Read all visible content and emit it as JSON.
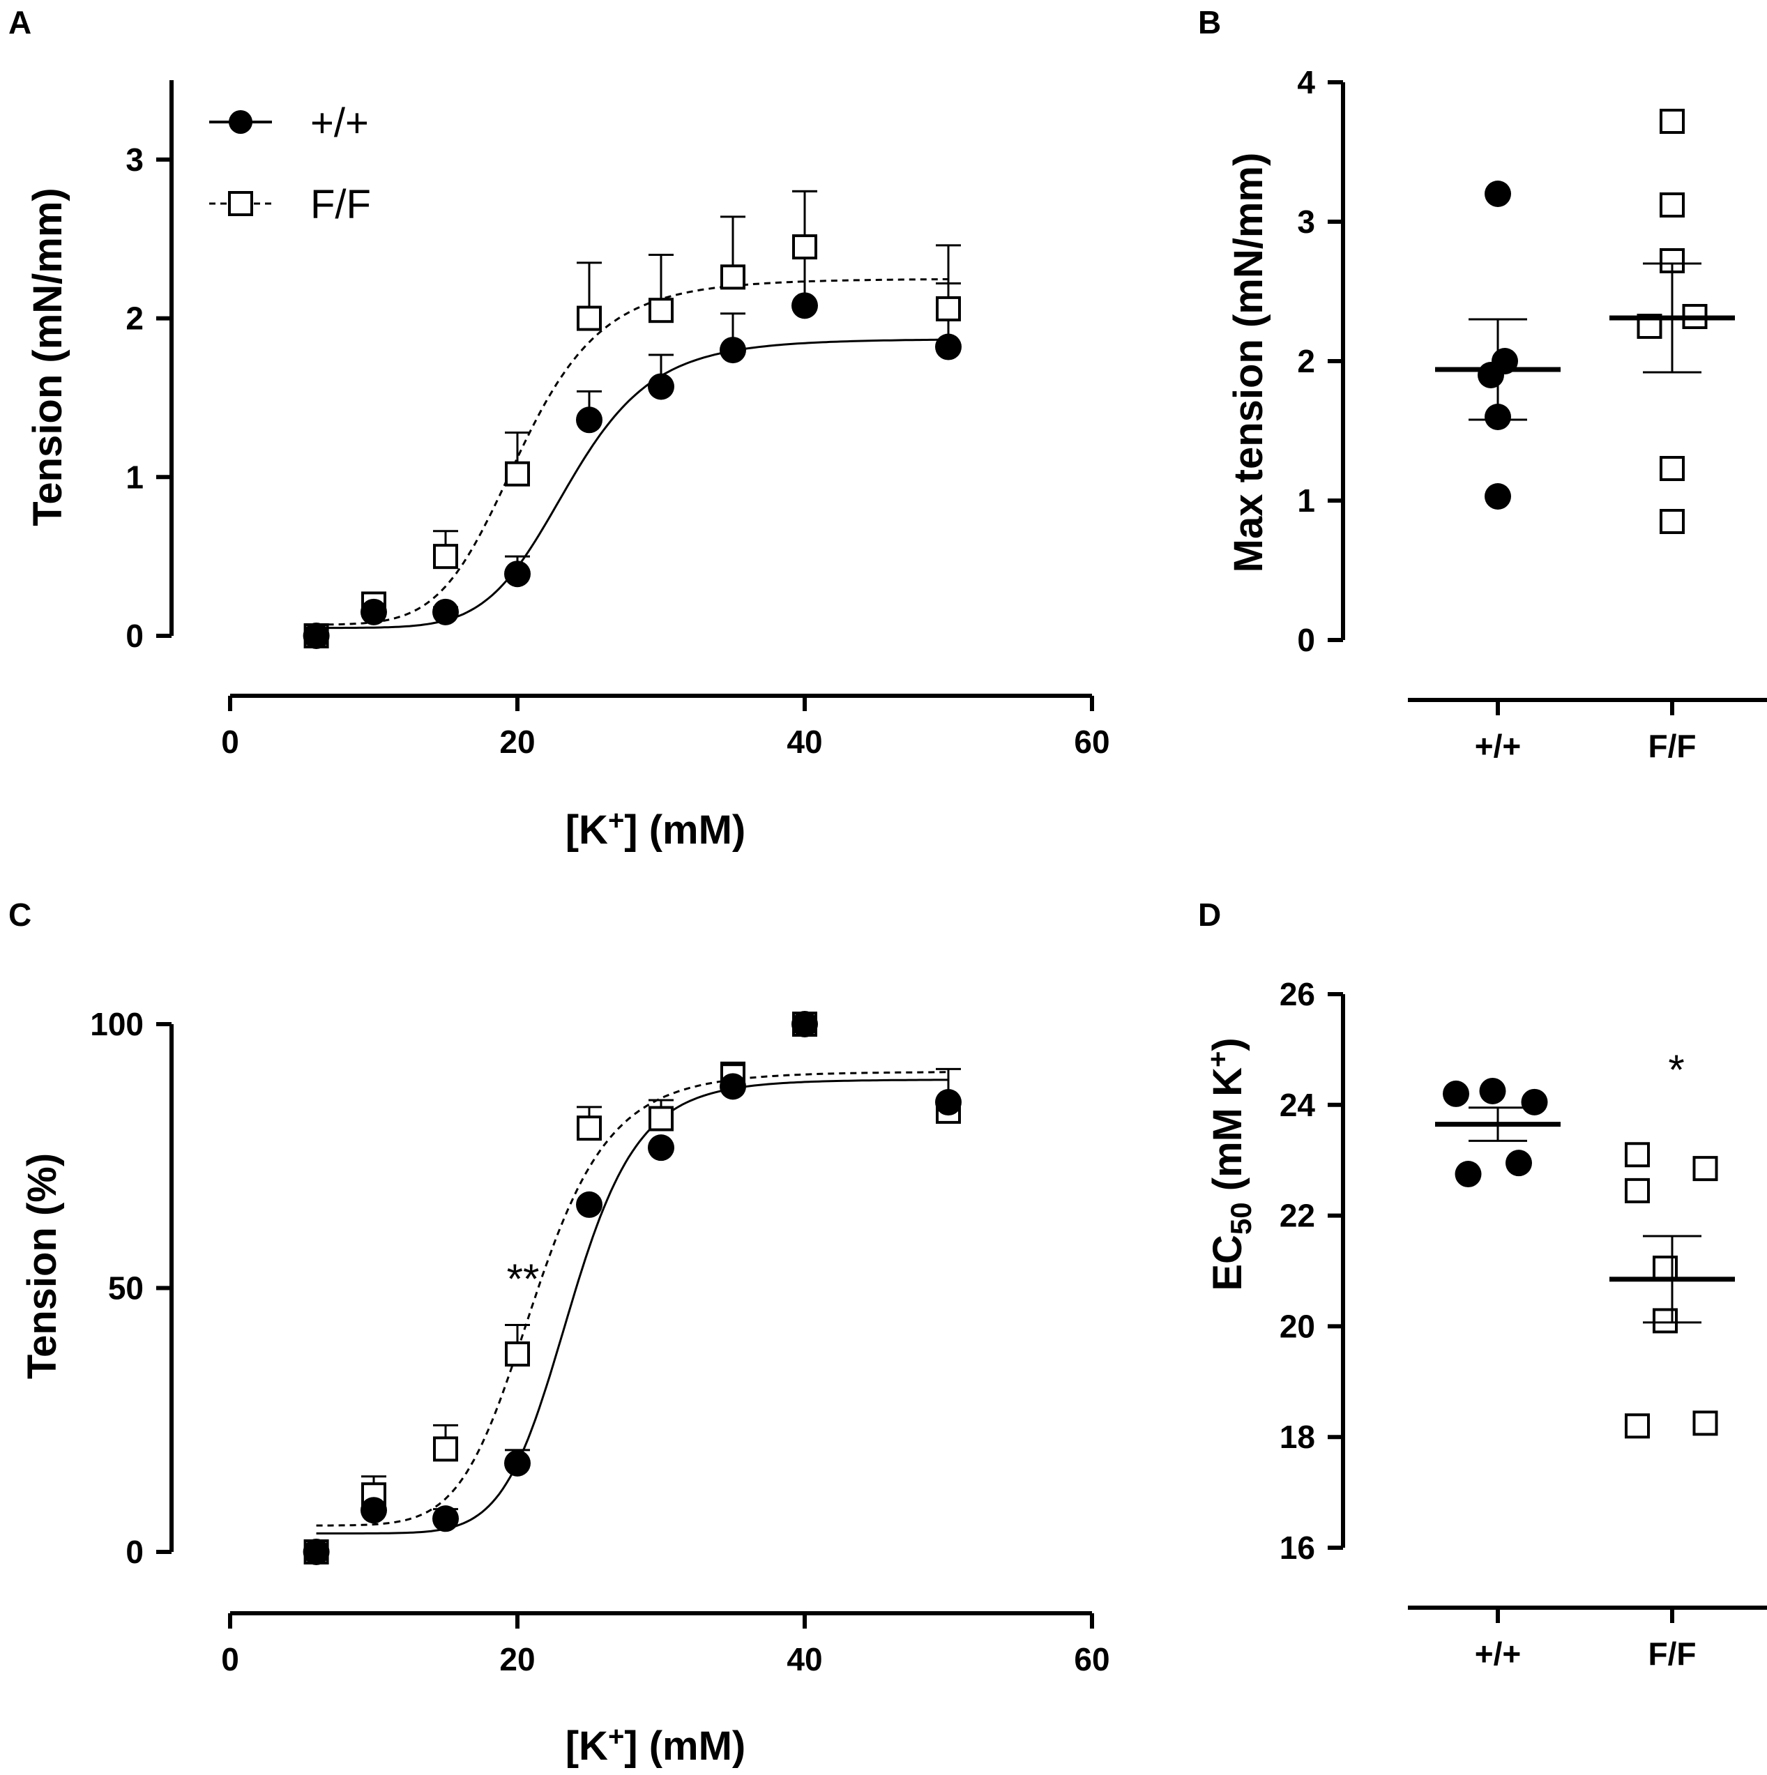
{
  "figure": {
    "panel_labels": [
      "A",
      "B",
      "C",
      "D"
    ]
  },
  "chart_data": [
    {
      "panel": "A",
      "type": "line",
      "xlabel": {
        "pre": "[K",
        "sup": "+",
        "post": "] (mM)"
      },
      "ylabel": "Tension (mN/mm)",
      "xlim": [
        0,
        60
      ],
      "ylim": [
        0,
        3.5
      ],
      "xticks": [
        0,
        20,
        40,
        60
      ],
      "yticks": [
        0,
        1,
        2,
        3
      ],
      "legend": {
        "position": "top-left",
        "entries": [
          "+/+",
          "F/F"
        ]
      },
      "series": [
        {
          "name": "+/+",
          "marker": "filled-circle",
          "line": "solid",
          "x": [
            6,
            10,
            15,
            20,
            25,
            30,
            35,
            40,
            50
          ],
          "y": [
            0.0,
            0.15,
            0.15,
            0.39,
            1.36,
            1.57,
            1.8,
            2.08,
            1.82
          ],
          "err": [
            0.0,
            0.03,
            0.03,
            0.11,
            0.18,
            0.2,
            0.23,
            0.72,
            0.4
          ],
          "fit": {
            "bottom": 0.05,
            "top": 1.87,
            "ec50": 23.6,
            "hill": 8
          }
        },
        {
          "name": "F/F",
          "marker": "open-square",
          "line": "dashed",
          "x": [
            6,
            10,
            15,
            20,
            25,
            30,
            35,
            40,
            50
          ],
          "y": [
            0.0,
            0.2,
            0.5,
            1.02,
            2.0,
            2.05,
            2.26,
            2.45,
            2.06
          ],
          "err": [
            0.0,
            0.04,
            0.16,
            0.26,
            0.35,
            0.35,
            0.38,
            0.35,
            0.4
          ],
          "fit": {
            "bottom": 0.07,
            "top": 2.25,
            "ec50": 20.2,
            "hill": 7
          }
        }
      ]
    },
    {
      "panel": "B",
      "type": "scatter",
      "ylabel": "Max tension (mN/mm)",
      "categories": [
        "+/+",
        "F/F"
      ],
      "ylim": [
        0,
        4
      ],
      "yticks": [
        0,
        1,
        2,
        3,
        4
      ],
      "series": [
        {
          "name": "+/+",
          "marker": "filled-circle",
          "points": [
            [
              0,
              3.2
            ],
            [
              -0.04,
              1.9
            ],
            [
              0.04,
              2.0
            ],
            [
              0.0,
              1.6
            ],
            [
              0.0,
              1.03
            ]
          ],
          "mean": 1.94,
          "sem": 0.36
        },
        {
          "name": "F/F",
          "marker": "open-square",
          "points": [
            [
              0.0,
              3.72
            ],
            [
              0.0,
              3.12
            ],
            [
              0.0,
              2.72
            ],
            [
              -0.13,
              2.25
            ],
            [
              0.13,
              2.32
            ],
            [
              0.0,
              1.23
            ],
            [
              0.0,
              0.85
            ]
          ],
          "mean": 2.31,
          "sem": 0.39
        }
      ]
    },
    {
      "panel": "C",
      "type": "line",
      "xlabel": {
        "pre": "[K",
        "sup": "+",
        "post": "] (mM)"
      },
      "ylabel": "Tension (%)",
      "xlim": [
        0,
        60
      ],
      "ylim": [
        0,
        100
      ],
      "xticks": [
        0,
        20,
        40,
        60
      ],
      "yticks": [
        0,
        50,
        100
      ],
      "annotations": [
        {
          "text": "**",
          "x": 20.3,
          "y": 54
        }
      ],
      "series": [
        {
          "name": "+/+",
          "marker": "filled-circle",
          "line": "solid",
          "x": [
            6,
            10,
            15,
            20,
            25,
            30,
            35,
            40,
            50
          ],
          "y": [
            0,
            7.9,
            6.3,
            16.8,
            65.8,
            76.6,
            88.2,
            100,
            85.2
          ],
          "err": [
            0,
            1.2,
            1.8,
            2.5,
            0,
            0,
            0,
            0,
            0
          ],
          "fit": {
            "bottom": 3.5,
            "top": 89.5,
            "ec50": 23.7,
            "hill": 10
          }
        },
        {
          "name": "F/F",
          "marker": "open-square",
          "line": "dashed",
          "x": [
            6,
            10,
            15,
            20,
            25,
            30,
            35,
            40,
            50
          ],
          "y": [
            0,
            10.8,
            19.5,
            37.5,
            80.3,
            82.1,
            90.2,
            100,
            83.5
          ],
          "err": [
            0,
            3.5,
            4.5,
            5.5,
            4,
            3.5,
            2.5,
            0,
            8
          ],
          "fit": {
            "bottom": 5,
            "top": 91,
            "ec50": 21.2,
            "hill": 8
          }
        }
      ]
    },
    {
      "panel": "D",
      "type": "scatter",
      "ylabel": {
        "pre": "EC",
        "sub": "50",
        "mid": " (mM K",
        "sup": "+",
        "post": ")"
      },
      "categories": [
        "+/+",
        "F/F"
      ],
      "ylim": [
        16,
        26
      ],
      "yticks": [
        16,
        18,
        20,
        22,
        24,
        26
      ],
      "annotations": [
        {
          "text": "*",
          "category": "F/F",
          "y": 25.0
        }
      ],
      "series": [
        {
          "name": "+/+",
          "marker": "filled-circle",
          "points": [
            [
              -0.24,
              24.2
            ],
            [
              -0.03,
              24.25
            ],
            [
              0.21,
              24.05
            ],
            [
              -0.17,
              22.75
            ],
            [
              0.12,
              22.95
            ]
          ],
          "mean": 23.65,
          "sem": 0.3
        },
        {
          "name": "F/F",
          "marker": "open-square",
          "points": [
            [
              -0.2,
              23.1
            ],
            [
              0.19,
              22.85
            ],
            [
              -0.2,
              22.45
            ],
            [
              -0.04,
              21.05
            ],
            [
              -0.04,
              20.1
            ],
            [
              -0.2,
              18.2
            ],
            [
              0.19,
              18.25
            ]
          ],
          "mean": 20.85,
          "sem": 0.78
        }
      ]
    }
  ]
}
